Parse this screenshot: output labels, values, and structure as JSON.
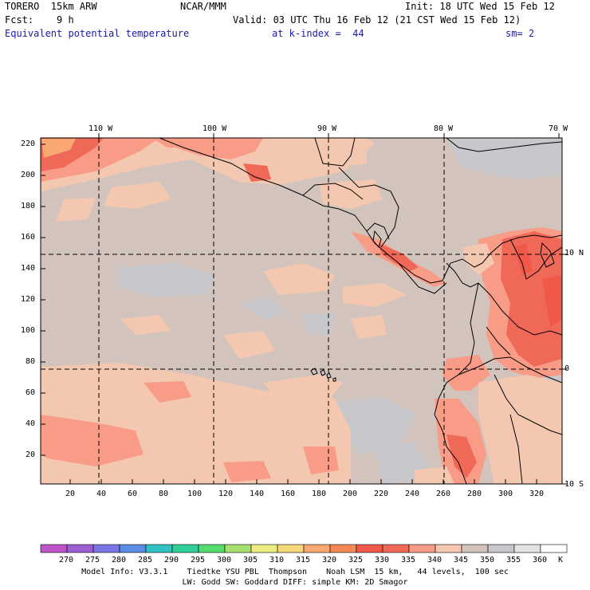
{
  "header": {
    "model": "TORERO  15km ARW",
    "agency": "NCAR/MMM",
    "init": "Init: 18 UTC Wed 15 Feb 12",
    "fcst": "Fcst:    9 h",
    "valid": "Valid: 03 UTC Thu 16 Feb 12 (21 CST Wed 15 Feb 12)",
    "field": "Equivalent potential temperature",
    "level": "at k-index =  44",
    "smoothing": "sm= 2"
  },
  "top_lon_labels": [
    "110 W",
    "100 W",
    "90 W",
    "80 W",
    "70 W"
  ],
  "right_lat_labels": [
    "10 N",
    "0",
    "10 S"
  ],
  "y_axis_ticks": [
    "220",
    "200",
    "180",
    "160",
    "140",
    "120",
    "100",
    "80",
    "60",
    "40",
    "20"
  ],
  "x_axis_ticks": [
    "20",
    "40",
    "60",
    "80",
    "100",
    "120",
    "140",
    "160",
    "180",
    "200",
    "220",
    "240",
    "260",
    "280",
    "300",
    "320"
  ],
  "colorbar": {
    "labels": [
      "270",
      "275",
      "280",
      "285",
      "290",
      "295",
      "300",
      "305",
      "310",
      "315",
      "320",
      "325",
      "330",
      "335",
      "340",
      "345",
      "350",
      "355",
      "360"
    ],
    "unit": "K",
    "colors": [
      "#c054c8",
      "#9a60d0",
      "#7a74e4",
      "#5a8ce0",
      "#32c0c0",
      "#30d098",
      "#58dc70",
      "#a8e070",
      "#ecec80",
      "#f4d878",
      "#f8a870",
      "#f48858",
      "#f05848",
      "#f06858",
      "#f89c88",
      "#f4c8b0",
      "#d2c4bc",
      "#c8c8cc",
      "#e4e4e4",
      "#ffffff"
    ]
  },
  "footer": {
    "line1": "Model Info: V3.3.1    Tiedtke YSU PBL  Thompson    Noah LSM  15 km,   44 levels,  100 sec",
    "line2": "LW: Godd SW: Goddard DIFF: simple KM: 2D Smagor"
  }
}
